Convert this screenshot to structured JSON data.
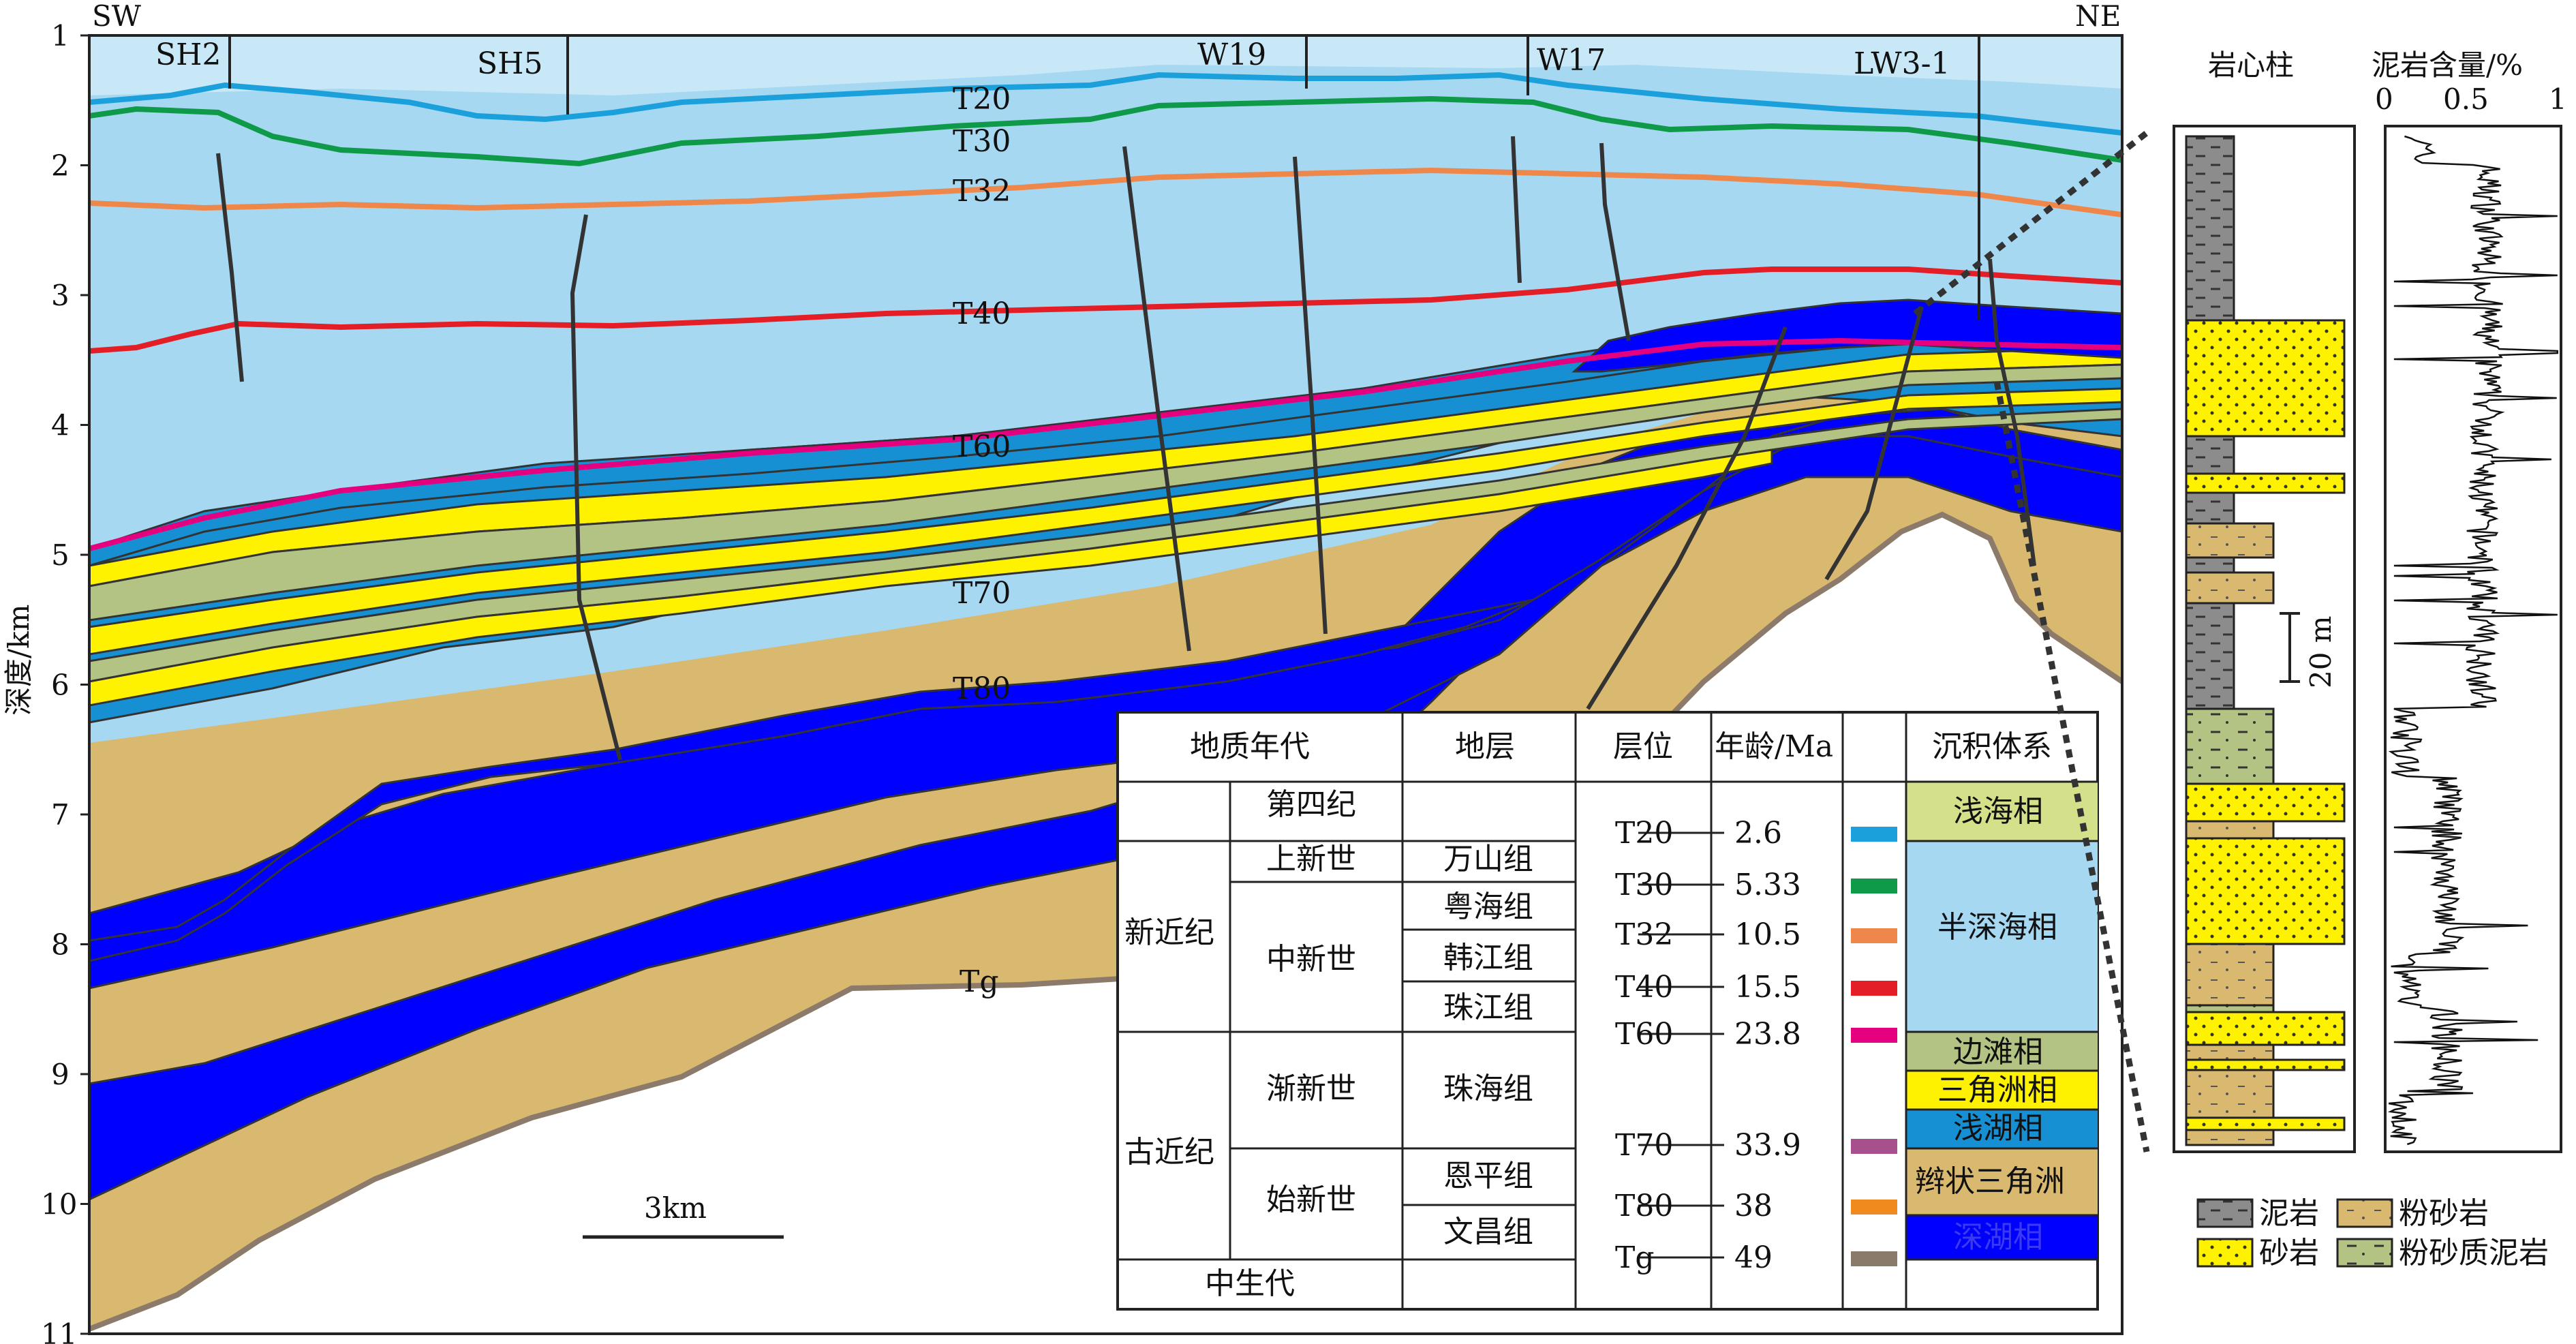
{
  "section": {
    "dir_left": "SW",
    "dir_right": "NE",
    "depth_label": "深度/km",
    "depth_ticks": [
      "1",
      "2",
      "3",
      "4",
      "5",
      "6",
      "7",
      "8",
      "9",
      "10",
      "11"
    ],
    "wells": [
      "SH2",
      "SH5",
      "W19",
      "W17",
      "LW3-1"
    ],
    "horizons": [
      "T20",
      "T30",
      "T32",
      "T40",
      "T60",
      "T70",
      "T80",
      "Tg"
    ],
    "scale_label": "3km"
  },
  "colors": {
    "deep_water": "#A6D8F2",
    "shallow_marine": "#D5E08A",
    "shelf_bank": "#B3C383",
    "delta": "#FFF200",
    "shallow_lake": "#1790D3",
    "braided_delta": "#D9B870",
    "deep_lake": "#0000FF",
    "basement_line": "#8C7B6A"
  },
  "table": {
    "headers": [
      "地质年代",
      "地层",
      "层位",
      "年龄/Ma",
      "沉积体系"
    ],
    "eras": [
      "新近纪",
      "古近纪",
      "中生代"
    ],
    "periods": [
      "第四纪",
      "上新世",
      "中新世",
      "渐新世",
      "始新世"
    ],
    "formations": [
      "万山组",
      "粤海组",
      "韩江组",
      "珠江组",
      "珠海组",
      "恩平组",
      "文昌组"
    ],
    "rows": [
      {
        "horizon": "T20",
        "age": "2.6",
        "color": "#1BA0DC"
      },
      {
        "horizon": "T30",
        "age": "5.33",
        "color": "#0E9A48"
      },
      {
        "horizon": "T32",
        "age": "10.5",
        "color": "#F0874A"
      },
      {
        "horizon": "T40",
        "age": "15.5",
        "color": "#E41E26"
      },
      {
        "horizon": "T60",
        "age": "23.8",
        "color": "#E4007E"
      },
      {
        "horizon": "T70",
        "age": "33.9",
        "color": "#A8508E"
      },
      {
        "horizon": "T80",
        "age": "38",
        "color": "#F08A1E"
      },
      {
        "horizon": "Tg",
        "age": "49",
        "color": "#8A7A6A"
      }
    ],
    "facies": [
      "浅海相",
      "半深海相",
      "边滩相",
      "三角洲相",
      "浅湖相",
      "辫状三角洲",
      "深湖相"
    ]
  },
  "core": {
    "title": "岩心柱",
    "scale_label": "20 m"
  },
  "log": {
    "title": "泥岩含量/%",
    "ticks": [
      "0",
      "0.5",
      "1"
    ]
  },
  "legend": {
    "mudstone": "泥岩",
    "siltstone": "粉砂岩",
    "sandstone": "砂岩",
    "silty_mudstone": "粉砂质泥岩"
  }
}
